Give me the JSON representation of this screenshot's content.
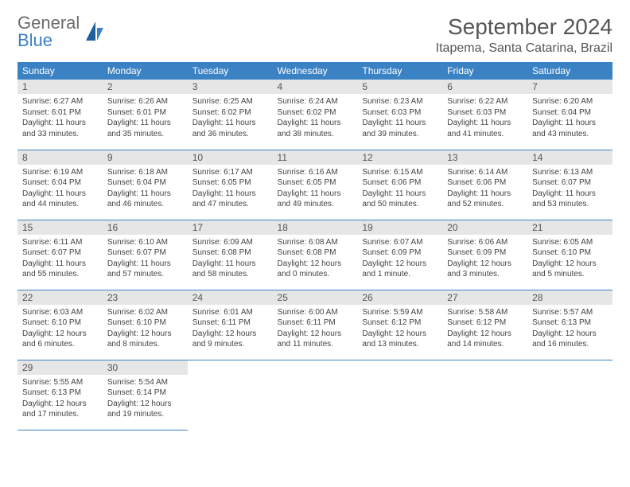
{
  "brand": {
    "word1": "General",
    "word2": "Blue"
  },
  "title": "September 2024",
  "location": "Itapema, Santa Catarina, Brazil",
  "colors": {
    "header_bg": "#3b82c4",
    "header_text": "#ffffff",
    "daynum_bg": "#e6e6e6",
    "border": "#3b82c4",
    "logo_gray": "#6b6b6b",
    "logo_blue": "#3b7fc4",
    "title_color": "#555555"
  },
  "weekdays": [
    "Sunday",
    "Monday",
    "Tuesday",
    "Wednesday",
    "Thursday",
    "Friday",
    "Saturday"
  ],
  "days": [
    {
      "n": 1,
      "sunrise": "6:27 AM",
      "sunset": "6:01 PM",
      "daylight": "11 hours and 33 minutes."
    },
    {
      "n": 2,
      "sunrise": "6:26 AM",
      "sunset": "6:01 PM",
      "daylight": "11 hours and 35 minutes."
    },
    {
      "n": 3,
      "sunrise": "6:25 AM",
      "sunset": "6:02 PM",
      "daylight": "11 hours and 36 minutes."
    },
    {
      "n": 4,
      "sunrise": "6:24 AM",
      "sunset": "6:02 PM",
      "daylight": "11 hours and 38 minutes."
    },
    {
      "n": 5,
      "sunrise": "6:23 AM",
      "sunset": "6:03 PM",
      "daylight": "11 hours and 39 minutes."
    },
    {
      "n": 6,
      "sunrise": "6:22 AM",
      "sunset": "6:03 PM",
      "daylight": "11 hours and 41 minutes."
    },
    {
      "n": 7,
      "sunrise": "6:20 AM",
      "sunset": "6:04 PM",
      "daylight": "11 hours and 43 minutes."
    },
    {
      "n": 8,
      "sunrise": "6:19 AM",
      "sunset": "6:04 PM",
      "daylight": "11 hours and 44 minutes."
    },
    {
      "n": 9,
      "sunrise": "6:18 AM",
      "sunset": "6:04 PM",
      "daylight": "11 hours and 46 minutes."
    },
    {
      "n": 10,
      "sunrise": "6:17 AM",
      "sunset": "6:05 PM",
      "daylight": "11 hours and 47 minutes."
    },
    {
      "n": 11,
      "sunrise": "6:16 AM",
      "sunset": "6:05 PM",
      "daylight": "11 hours and 49 minutes."
    },
    {
      "n": 12,
      "sunrise": "6:15 AM",
      "sunset": "6:06 PM",
      "daylight": "11 hours and 50 minutes."
    },
    {
      "n": 13,
      "sunrise": "6:14 AM",
      "sunset": "6:06 PM",
      "daylight": "11 hours and 52 minutes."
    },
    {
      "n": 14,
      "sunrise": "6:13 AM",
      "sunset": "6:07 PM",
      "daylight": "11 hours and 53 minutes."
    },
    {
      "n": 15,
      "sunrise": "6:11 AM",
      "sunset": "6:07 PM",
      "daylight": "11 hours and 55 minutes."
    },
    {
      "n": 16,
      "sunrise": "6:10 AM",
      "sunset": "6:07 PM",
      "daylight": "11 hours and 57 minutes."
    },
    {
      "n": 17,
      "sunrise": "6:09 AM",
      "sunset": "6:08 PM",
      "daylight": "11 hours and 58 minutes."
    },
    {
      "n": 18,
      "sunrise": "6:08 AM",
      "sunset": "6:08 PM",
      "daylight": "12 hours and 0 minutes."
    },
    {
      "n": 19,
      "sunrise": "6:07 AM",
      "sunset": "6:09 PM",
      "daylight": "12 hours and 1 minute."
    },
    {
      "n": 20,
      "sunrise": "6:06 AM",
      "sunset": "6:09 PM",
      "daylight": "12 hours and 3 minutes."
    },
    {
      "n": 21,
      "sunrise": "6:05 AM",
      "sunset": "6:10 PM",
      "daylight": "12 hours and 5 minutes."
    },
    {
      "n": 22,
      "sunrise": "6:03 AM",
      "sunset": "6:10 PM",
      "daylight": "12 hours and 6 minutes."
    },
    {
      "n": 23,
      "sunrise": "6:02 AM",
      "sunset": "6:10 PM",
      "daylight": "12 hours and 8 minutes."
    },
    {
      "n": 24,
      "sunrise": "6:01 AM",
      "sunset": "6:11 PM",
      "daylight": "12 hours and 9 minutes."
    },
    {
      "n": 25,
      "sunrise": "6:00 AM",
      "sunset": "6:11 PM",
      "daylight": "12 hours and 11 minutes."
    },
    {
      "n": 26,
      "sunrise": "5:59 AM",
      "sunset": "6:12 PM",
      "daylight": "12 hours and 13 minutes."
    },
    {
      "n": 27,
      "sunrise": "5:58 AM",
      "sunset": "6:12 PM",
      "daylight": "12 hours and 14 minutes."
    },
    {
      "n": 28,
      "sunrise": "5:57 AM",
      "sunset": "6:13 PM",
      "daylight": "12 hours and 16 minutes."
    },
    {
      "n": 29,
      "sunrise": "5:55 AM",
      "sunset": "6:13 PM",
      "daylight": "12 hours and 17 minutes."
    },
    {
      "n": 30,
      "sunrise": "5:54 AM",
      "sunset": "6:14 PM",
      "daylight": "12 hours and 19 minutes."
    }
  ],
  "labels": {
    "sunrise": "Sunrise:",
    "sunset": "Sunset:",
    "daylight": "Daylight:"
  }
}
